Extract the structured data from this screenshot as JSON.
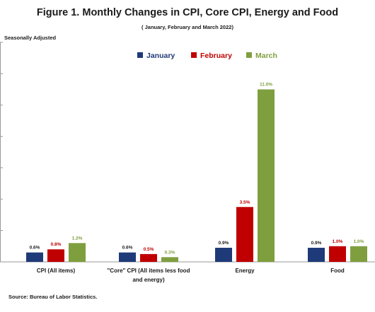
{
  "title": "Figure 1. Monthly Changes in CPI, Core CPI, Energy and Food",
  "subtitle": "( January, February and March 2022)",
  "seasonal_note": "Seasonally Adjusted",
  "source": "Source: Bureau of Labor Statistics.",
  "chart_data": {
    "type": "bar",
    "title": "Figure 1. Monthly Changes in CPI, Core CPI, Energy and Food",
    "subtitle": "( January, February and March 2022)",
    "categories": [
      [
        "CPI (All items)"
      ],
      [
        "\"Core\" CPI (All items less food",
        "and energy)"
      ],
      [
        "Energy"
      ],
      [
        "Food"
      ]
    ],
    "series": [
      {
        "name": "January",
        "color": "#1f3a78",
        "values": [
          0.6,
          0.6,
          0.9,
          0.9
        ],
        "labels": [
          "0.6%",
          "0.6%",
          "0.9%",
          "0.9%"
        ],
        "label_color": "#1a1a1a"
      },
      {
        "name": "February",
        "color": "#c00000",
        "values": [
          0.8,
          0.5,
          3.5,
          1.0
        ],
        "labels": [
          "0.8%",
          "0.5%",
          "3.5%",
          "1.0%"
        ],
        "label_color": "#c00000"
      },
      {
        "name": "March",
        "color": "#7f9f3f",
        "values": [
          1.2,
          0.3,
          11.0,
          1.0
        ],
        "labels": [
          "1.2%",
          "0.3%",
          "11.0%",
          "1.0%"
        ],
        "label_color": "#7f9f3f"
      }
    ],
    "ylim": [
      0,
      14
    ],
    "legend_position": "top-center"
  }
}
